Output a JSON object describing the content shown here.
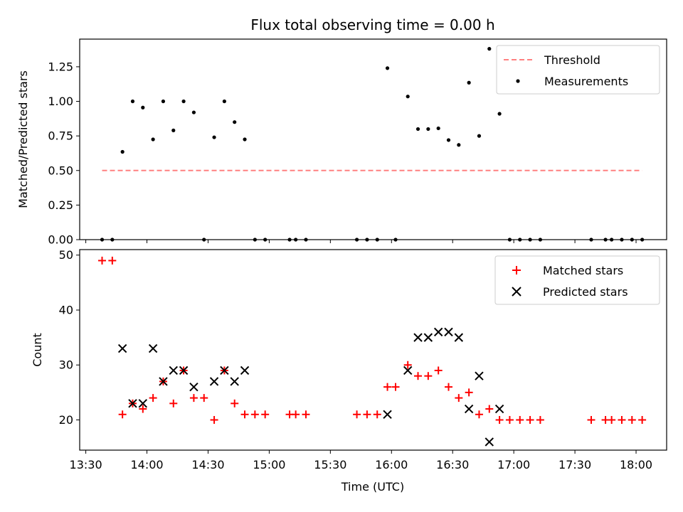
{
  "chart_data": {
    "type": "scatter",
    "title": "Flux total observing time = 0.00 h",
    "xlabel": "Time (UTC)",
    "x_ticks": [
      "13:30",
      "14:00",
      "14:30",
      "15:00",
      "15:30",
      "16:00",
      "16:30",
      "17:00",
      "17:30",
      "18:00"
    ],
    "x_range": [
      "13:27",
      "18:15"
    ],
    "ratio_panel": {
      "ylabel": "Matched/Predicted stars",
      "ylim": [
        0,
        1.45
      ],
      "y_ticks": [
        "0.00",
        "0.25",
        "0.50",
        "0.75",
        "1.00",
        "1.25"
      ],
      "threshold": {
        "name": "Threshold",
        "value": 0.5,
        "x_range": [
          "13:38",
          "18:03"
        ],
        "color": "#ff8080"
      },
      "measurements": {
        "name": "Measurements",
        "color": "#000000",
        "points": [
          [
            "13:38",
            0.0
          ],
          [
            "13:43",
            0.0
          ],
          [
            "13:48",
            0.635
          ],
          [
            "13:53",
            1.0
          ],
          [
            "13:58",
            0.955
          ],
          [
            "14:03",
            0.725
          ],
          [
            "14:08",
            1.0
          ],
          [
            "14:13",
            0.79
          ],
          [
            "14:18",
            1.0
          ],
          [
            "14:23",
            0.92
          ],
          [
            "14:28",
            0.0
          ],
          [
            "14:33",
            0.74
          ],
          [
            "14:38",
            1.0
          ],
          [
            "14:43",
            0.85
          ],
          [
            "14:48",
            0.725
          ],
          [
            "14:53",
            0.0
          ],
          [
            "14:58",
            0.0
          ],
          [
            "15:10",
            0.0
          ],
          [
            "15:13",
            0.0
          ],
          [
            "15:18",
            0.0
          ],
          [
            "15:43",
            0.0
          ],
          [
            "15:48",
            0.0
          ],
          [
            "15:53",
            0.0
          ],
          [
            "15:58",
            1.24
          ],
          [
            "16:02",
            0.0
          ],
          [
            "16:08",
            1.035
          ],
          [
            "16:13",
            0.8
          ],
          [
            "16:18",
            0.8
          ],
          [
            "16:23",
            0.805
          ],
          [
            "16:28",
            0.72
          ],
          [
            "16:33",
            0.685
          ],
          [
            "16:38",
            1.135
          ],
          [
            "16:43",
            0.75
          ],
          [
            "16:48",
            1.38
          ],
          [
            "16:53",
            0.91
          ],
          [
            "16:58",
            0.0
          ],
          [
            "17:03",
            0.0
          ],
          [
            "17:08",
            0.0
          ],
          [
            "17:13",
            0.0
          ],
          [
            "17:38",
            0.0
          ],
          [
            "17:45",
            0.0
          ],
          [
            "17:48",
            0.0
          ],
          [
            "17:53",
            0.0
          ],
          [
            "17:58",
            0.0
          ],
          [
            "18:03",
            0.0
          ]
        ]
      },
      "legend": {
        "placement": "upper right"
      }
    },
    "count_panel": {
      "ylabel": "Count",
      "ylim": [
        14.5,
        51
      ],
      "y_ticks": [
        "20",
        "30",
        "40",
        "50"
      ],
      "matched": {
        "name": "Matched stars",
        "color": "#ff0000",
        "points": [
          [
            "13:38",
            49
          ],
          [
            "13:43",
            49
          ],
          [
            "13:48",
            21
          ],
          [
            "13:53",
            23
          ],
          [
            "13:58",
            22
          ],
          [
            "14:03",
            24
          ],
          [
            "14:08",
            27
          ],
          [
            "14:13",
            23
          ],
          [
            "14:18",
            29
          ],
          [
            "14:23",
            24
          ],
          [
            "14:28",
            24
          ],
          [
            "14:33",
            20
          ],
          [
            "14:38",
            29
          ],
          [
            "14:43",
            23
          ],
          [
            "14:48",
            21
          ],
          [
            "14:53",
            21
          ],
          [
            "14:58",
            21
          ],
          [
            "15:10",
            21
          ],
          [
            "15:13",
            21
          ],
          [
            "15:18",
            21
          ],
          [
            "15:43",
            21
          ],
          [
            "15:48",
            21
          ],
          [
            "15:53",
            21
          ],
          [
            "15:58",
            26
          ],
          [
            "16:02",
            26
          ],
          [
            "16:08",
            30
          ],
          [
            "16:13",
            28
          ],
          [
            "16:18",
            28
          ],
          [
            "16:23",
            29
          ],
          [
            "16:28",
            26
          ],
          [
            "16:33",
            24
          ],
          [
            "16:38",
            25
          ],
          [
            "16:43",
            21
          ],
          [
            "16:48",
            22
          ],
          [
            "16:53",
            20
          ],
          [
            "16:58",
            20
          ],
          [
            "17:03",
            20
          ],
          [
            "17:08",
            20
          ],
          [
            "17:13",
            20
          ],
          [
            "17:38",
            20
          ],
          [
            "17:45",
            20
          ],
          [
            "17:48",
            20
          ],
          [
            "17:53",
            20
          ],
          [
            "17:58",
            20
          ],
          [
            "18:03",
            20
          ]
        ]
      },
      "predicted": {
        "name": "Predicted stars",
        "color": "#000000",
        "points": [
          [
            "13:48",
            33
          ],
          [
            "13:53",
            23
          ],
          [
            "13:58",
            23
          ],
          [
            "14:03",
            33
          ],
          [
            "14:08",
            27
          ],
          [
            "14:13",
            29
          ],
          [
            "14:18",
            29
          ],
          [
            "14:23",
            26
          ],
          [
            "14:33",
            27
          ],
          [
            "14:38",
            29
          ],
          [
            "14:43",
            27
          ],
          [
            "14:48",
            29
          ],
          [
            "15:58",
            21
          ],
          [
            "16:08",
            29
          ],
          [
            "16:13",
            35
          ],
          [
            "16:18",
            35
          ],
          [
            "16:23",
            36
          ],
          [
            "16:28",
            36
          ],
          [
            "16:33",
            35
          ],
          [
            "16:38",
            22
          ],
          [
            "16:43",
            28
          ],
          [
            "16:48",
            16
          ],
          [
            "16:53",
            22
          ]
        ]
      },
      "legend": {
        "placement": "upper right"
      }
    }
  }
}
